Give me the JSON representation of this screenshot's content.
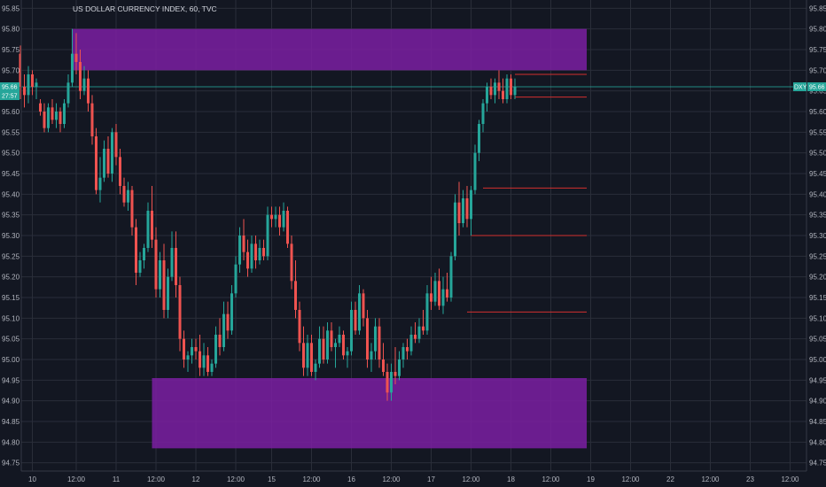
{
  "chart_data": {
    "type": "candlestick",
    "title": "US DOLLAR CURRENCY INDEX, 60, TVC",
    "ylim": [
      94.73,
      95.87
    ],
    "y_ticks": [
      "95.85",
      "95.80",
      "95.75",
      "95.70",
      "95.65",
      "95.60",
      "95.55",
      "95.50",
      "95.45",
      "95.40",
      "95.35",
      "95.30",
      "95.25",
      "95.20",
      "95.15",
      "95.10",
      "95.05",
      "95.00",
      "94.95",
      "94.90",
      "94.85",
      "94.80",
      "94.75"
    ],
    "x_ticks": [
      {
        "label": "10",
        "bar": 3
      },
      {
        "label": "12:00",
        "bar": 14
      },
      {
        "label": "11",
        "bar": 24
      },
      {
        "label": "12:00",
        "bar": 34
      },
      {
        "label": "12",
        "bar": 44
      },
      {
        "label": "12:00",
        "bar": 54
      },
      {
        "label": "15",
        "bar": 63
      },
      {
        "label": "12:00",
        "bar": 73
      },
      {
        "label": "16",
        "bar": 83
      },
      {
        "label": "12:00",
        "bar": 93
      },
      {
        "label": "17",
        "bar": 103
      },
      {
        "label": "12:00",
        "bar": 113
      },
      {
        "label": "18",
        "bar": 123
      },
      {
        "label": "12:00",
        "bar": 133
      },
      {
        "label": "19",
        "bar": 143
      },
      {
        "label": "12:00",
        "bar": 153
      },
      {
        "label": "22",
        "bar": 163
      },
      {
        "label": "12:00",
        "bar": 173
      },
      {
        "label": "23",
        "bar": 183
      },
      {
        "label": "12:00",
        "bar": 193
      }
    ],
    "price_label": {
      "value": "95.66",
      "countdown": "27:57",
      "symbol": "DXY"
    },
    "colors": {
      "up": "#26a69a",
      "down": "#ef5350",
      "zone": "#7b1fa2",
      "level": "#d32f2f",
      "tag": "#26a69a",
      "grid": "#2a2e39"
    },
    "zones": [
      {
        "x_from_bar": 13,
        "x_to_bar": 142,
        "y_from": 95.7,
        "y_to": 95.8
      },
      {
        "x_from_bar": 33,
        "x_to_bar": 142,
        "y_from": 94.785,
        "y_to": 94.955
      }
    ],
    "levels": [
      {
        "y": 95.69,
        "from_bar": 124,
        "to_bar": 142
      },
      {
        "y": 95.635,
        "from_bar": 124,
        "to_bar": 142
      },
      {
        "y": 95.415,
        "from_bar": 116,
        "to_bar": 142
      },
      {
        "y": 95.3,
        "from_bar": 113,
        "to_bar": 142
      },
      {
        "y": 95.115,
        "from_bar": 112,
        "to_bar": 142
      }
    ],
    "price_line": 95.66,
    "candles": [
      [
        95.74,
        95.76,
        95.63,
        95.66
      ],
      [
        95.66,
        95.69,
        95.61,
        95.64
      ],
      [
        95.64,
        95.71,
        95.62,
        95.69
      ],
      [
        95.69,
        95.7,
        95.64,
        95.66
      ],
      [
        95.66,
        95.68,
        95.63,
        95.67
      ],
      [
        95.62,
        95.63,
        95.59,
        95.6
      ],
      [
        95.6,
        95.62,
        95.55,
        95.56
      ],
      [
        95.56,
        95.62,
        95.55,
        95.61
      ],
      [
        95.61,
        95.63,
        95.57,
        95.58
      ],
      [
        95.58,
        95.62,
        95.56,
        95.6
      ],
      [
        95.6,
        95.61,
        95.55,
        95.57
      ],
      [
        95.57,
        95.63,
        95.56,
        95.62
      ],
      [
        95.62,
        95.69,
        95.61,
        95.67
      ],
      [
        95.67,
        95.8,
        95.66,
        95.74
      ],
      [
        95.74,
        95.79,
        95.69,
        95.72
      ],
      [
        95.72,
        95.75,
        95.63,
        95.65
      ],
      [
        95.65,
        95.71,
        95.64,
        95.68
      ],
      [
        95.68,
        95.7,
        95.6,
        95.62
      ],
      [
        95.62,
        95.64,
        95.52,
        95.54
      ],
      [
        95.54,
        95.56,
        95.4,
        95.41
      ],
      [
        95.41,
        95.49,
        95.38,
        95.44
      ],
      [
        95.44,
        95.53,
        95.43,
        95.51
      ],
      [
        95.51,
        95.54,
        95.44,
        95.45
      ],
      [
        95.45,
        95.56,
        95.43,
        95.55
      ],
      [
        95.55,
        95.57,
        95.47,
        95.49
      ],
      [
        95.49,
        95.51,
        95.4,
        95.42
      ],
      [
        95.42,
        95.44,
        95.37,
        95.38
      ],
      [
        95.38,
        95.43,
        95.36,
        95.41
      ],
      [
        95.41,
        95.42,
        95.3,
        95.32
      ],
      [
        95.32,
        95.34,
        95.18,
        95.21
      ],
      [
        95.21,
        95.26,
        95.2,
        95.24
      ],
      [
        95.24,
        95.28,
        95.22,
        95.27
      ],
      [
        95.27,
        95.38,
        95.26,
        95.36
      ],
      [
        95.36,
        95.42,
        95.27,
        95.29
      ],
      [
        95.29,
        95.32,
        95.15,
        95.17
      ],
      [
        95.17,
        95.26,
        95.15,
        95.24
      ],
      [
        95.24,
        95.28,
        95.1,
        95.12
      ],
      [
        95.12,
        95.22,
        95.1,
        95.2
      ],
      [
        95.2,
        95.31,
        95.19,
        95.27
      ],
      [
        95.27,
        95.31,
        95.15,
        95.18
      ],
      [
        95.18,
        95.2,
        95.02,
        95.05
      ],
      [
        95.05,
        95.07,
        94.98,
        95.0
      ],
      [
        95.0,
        95.02,
        94.97,
        95.01
      ],
      [
        95.01,
        95.05,
        94.99,
        95.03
      ],
      [
        95.03,
        95.05,
        95.0,
        95.02
      ],
      [
        95.02,
        95.06,
        94.96,
        94.98
      ],
      [
        94.98,
        95.04,
        94.96,
        95.01
      ],
      [
        95.01,
        95.03,
        94.96,
        94.97
      ],
      [
        94.97,
        95.0,
        94.96,
        94.99
      ],
      [
        94.99,
        95.08,
        94.98,
        95.06
      ],
      [
        95.06,
        95.1,
        95.01,
        95.03
      ],
      [
        95.03,
        95.14,
        95.02,
        95.11
      ],
      [
        95.11,
        95.14,
        95.05,
        95.07
      ],
      [
        95.07,
        95.18,
        95.06,
        95.16
      ],
      [
        95.16,
        95.25,
        95.15,
        95.23
      ],
      [
        95.23,
        95.32,
        95.21,
        95.3
      ],
      [
        95.3,
        95.34,
        95.24,
        95.26
      ],
      [
        95.26,
        95.29,
        95.2,
        95.22
      ],
      [
        95.22,
        95.3,
        95.21,
        95.28
      ],
      [
        95.28,
        95.3,
        95.22,
        95.24
      ],
      [
        95.24,
        95.29,
        95.23,
        95.27
      ],
      [
        95.27,
        95.29,
        95.24,
        95.25
      ],
      [
        95.25,
        95.37,
        95.24,
        95.35
      ],
      [
        95.35,
        95.37,
        95.32,
        95.34
      ],
      [
        95.34,
        95.37,
        95.32,
        95.35
      ],
      [
        95.35,
        95.37,
        95.3,
        95.32
      ],
      [
        95.32,
        95.38,
        95.31,
        95.36
      ],
      [
        95.36,
        95.37,
        95.27,
        95.28
      ],
      [
        95.28,
        95.3,
        95.17,
        95.19
      ],
      [
        95.19,
        95.24,
        95.1,
        95.12
      ],
      [
        95.12,
        95.14,
        95.02,
        95.04
      ],
      [
        95.04,
        95.08,
        94.96,
        94.98
      ],
      [
        94.98,
        95.06,
        94.96,
        95.04
      ],
      [
        95.04,
        95.06,
        94.96,
        94.97
      ],
      [
        94.97,
        95.0,
        94.95,
        94.99
      ],
      [
        94.99,
        95.08,
        94.98,
        95.05
      ],
      [
        95.05,
        95.08,
        94.99,
        95.0
      ],
      [
        95.0,
        95.09,
        94.99,
        95.07
      ],
      [
        95.07,
        95.09,
        95.02,
        95.03
      ],
      [
        95.03,
        95.05,
        94.98,
        95.04
      ],
      [
        95.04,
        95.08,
        95.03,
        95.06
      ],
      [
        95.06,
        95.07,
        95.0,
        95.01
      ],
      [
        95.01,
        95.03,
        94.98,
        95.02
      ],
      [
        95.02,
        95.14,
        95.01,
        95.12
      ],
      [
        95.12,
        95.14,
        95.06,
        95.07
      ],
      [
        95.07,
        95.18,
        95.06,
        95.16
      ],
      [
        95.16,
        95.17,
        95.08,
        95.1
      ],
      [
        95.1,
        95.12,
        94.98,
        95.0
      ],
      [
        95.0,
        95.04,
        94.97,
        95.02
      ],
      [
        95.02,
        95.1,
        95.0,
        95.08
      ],
      [
        95.08,
        95.1,
        94.98,
        95.0
      ],
      [
        95.0,
        95.04,
        94.96,
        94.97
      ],
      [
        94.97,
        94.99,
        94.9,
        94.92
      ],
      [
        94.92,
        94.99,
        94.9,
        94.97
      ],
      [
        94.97,
        95.03,
        94.94,
        94.96
      ],
      [
        94.96,
        95.02,
        94.95,
        95.0
      ],
      [
        95.0,
        95.04,
        94.98,
        95.03
      ],
      [
        95.03,
        95.05,
        95.0,
        95.02
      ],
      [
        95.02,
        95.08,
        95.01,
        95.06
      ],
      [
        95.06,
        95.09,
        95.04,
        95.05
      ],
      [
        95.05,
        95.1,
        95.04,
        95.08
      ],
      [
        95.08,
        95.12,
        95.06,
        95.07
      ],
      [
        95.07,
        95.18,
        95.06,
        95.16
      ],
      [
        95.16,
        95.2,
        95.12,
        95.14
      ],
      [
        95.14,
        95.21,
        95.13,
        95.19
      ],
      [
        95.19,
        95.22,
        95.12,
        95.13
      ],
      [
        95.13,
        95.2,
        95.11,
        95.17
      ],
      [
        95.17,
        95.21,
        95.14,
        95.15
      ],
      [
        95.15,
        95.26,
        95.14,
        95.25
      ],
      [
        95.25,
        95.4,
        95.24,
        95.38
      ],
      [
        95.38,
        95.43,
        95.3,
        95.33
      ],
      [
        95.33,
        95.41,
        95.32,
        95.39
      ],
      [
        95.39,
        95.42,
        95.32,
        95.34
      ],
      [
        95.34,
        95.42,
        95.3,
        95.41
      ],
      [
        95.41,
        95.52,
        95.4,
        95.5
      ],
      [
        95.5,
        95.58,
        95.48,
        95.57
      ],
      [
        95.57,
        95.63,
        95.55,
        95.62
      ],
      [
        95.62,
        95.67,
        95.6,
        95.66
      ],
      [
        95.66,
        95.68,
        95.63,
        95.64
      ],
      [
        95.64,
        95.68,
        95.62,
        95.67
      ],
      [
        95.67,
        95.7,
        95.63,
        95.65
      ],
      [
        95.65,
        95.68,
        95.62,
        95.63
      ],
      [
        95.63,
        95.69,
        95.62,
        95.68
      ],
      [
        95.68,
        95.69,
        95.63,
        95.64
      ],
      [
        95.64,
        95.68,
        95.63,
        95.66
      ]
    ]
  }
}
